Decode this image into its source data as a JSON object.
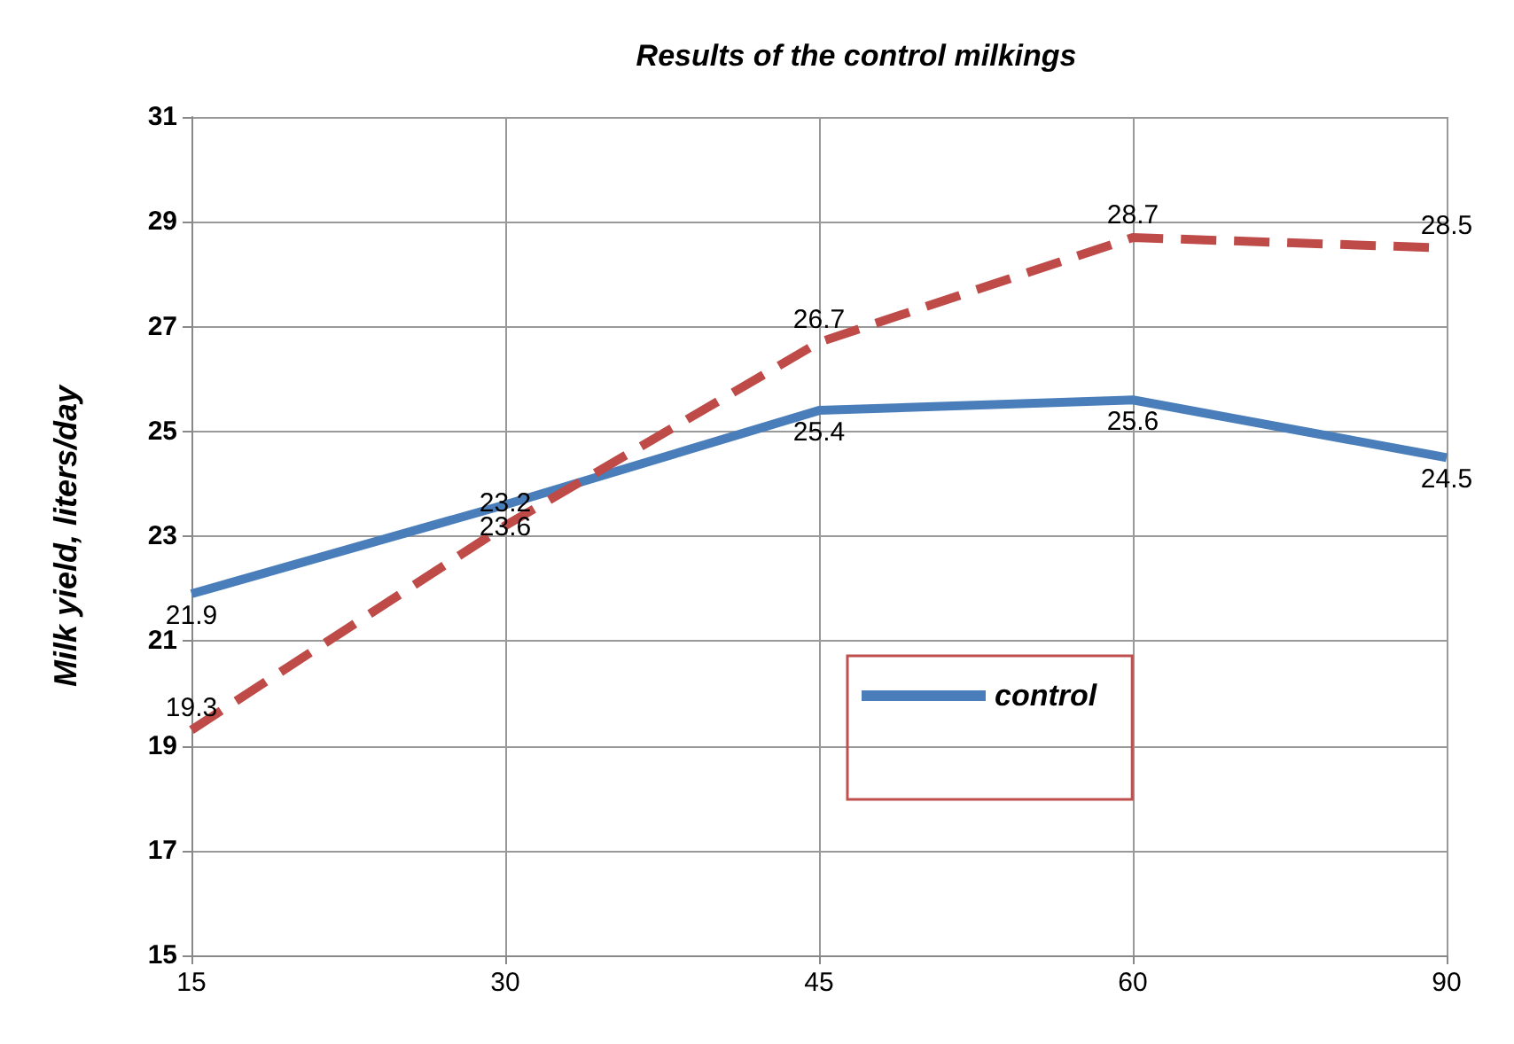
{
  "chart_data": {
    "type": "line",
    "title": "Results of the control milkings",
    "ylabel": "Milk yield, liters/day",
    "categories": [
      "15",
      "30",
      "45",
      "60",
      "90"
    ],
    "series": [
      {
        "name": "control",
        "color": "#4a7ebb",
        "values": [
          21.9,
          23.6,
          25.4,
          25.6,
          24.5
        ],
        "line_style": "solid"
      },
      {
        "color": "#be4b48",
        "values": [
          19.3,
          23.2,
          26.7,
          28.7,
          28.5
        ],
        "line_style": "dashed"
      }
    ],
    "ylim": [
      15,
      31
    ],
    "yticks": [
      15,
      17,
      19,
      21,
      23,
      25,
      27,
      29,
      31
    ],
    "grid": true,
    "legend": "center",
    "marker": "none",
    "data_labels": true
  }
}
